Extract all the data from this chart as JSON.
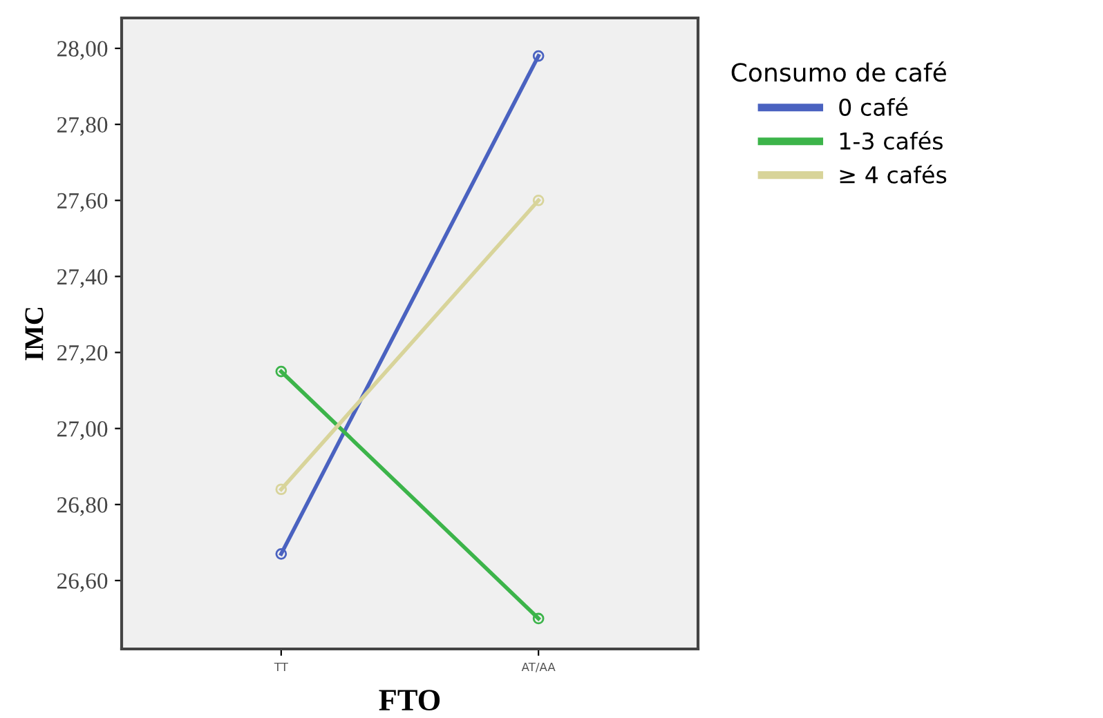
{
  "chart_data": {
    "type": "line",
    "xlabel": "FTO",
    "ylabel": "IMC",
    "legend_title": "Consumo de café",
    "legend": "right",
    "marker": "circle",
    "grid": false,
    "categories": [
      "TT",
      "AT/AA"
    ],
    "ylim": [
      26.42,
      28.08
    ],
    "yticks": [
      {
        "value": 26.6,
        "label": "26,60"
      },
      {
        "value": 26.8,
        "label": "26,80"
      },
      {
        "value": 27.0,
        "label": "27,00"
      },
      {
        "value": 27.2,
        "label": "27,20"
      },
      {
        "value": 27.4,
        "label": "27,40"
      },
      {
        "value": 27.6,
        "label": "27,60"
      },
      {
        "value": 27.8,
        "label": "27,80"
      },
      {
        "value": 28.0,
        "label": "28,00"
      }
    ],
    "series": [
      {
        "name": "0 café",
        "color": "#4a62c0",
        "values": [
          26.67,
          27.98
        ]
      },
      {
        "name": "1-3 cafés",
        "color": "#3cb44a",
        "values": [
          27.15,
          26.5
        ]
      },
      {
        "name": "≥ 4 cafés",
        "color": "#d8d49a",
        "values": [
          26.84,
          27.6
        ]
      }
    ]
  }
}
